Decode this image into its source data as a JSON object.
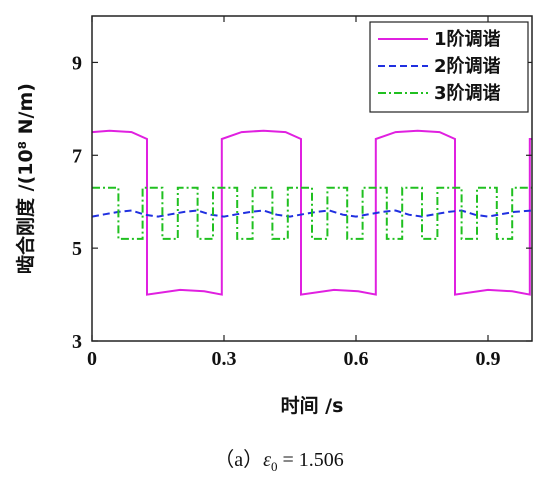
{
  "caption": {
    "label": "（a）",
    "symbol": "ε",
    "subscript": "0",
    "equals": " = ",
    "value": "1.506"
  },
  "chart_data": {
    "type": "line",
    "xlabel": "时间 /s",
    "ylabel": "啮合刚度 /(10⁸ N/m)",
    "xlim": [
      0,
      1.0
    ],
    "ylim": [
      3,
      10
    ],
    "xticks": [
      0,
      0.3,
      0.6,
      0.9
    ],
    "xtick_labels": [
      "0",
      "0.3",
      "0.6",
      "0.9"
    ],
    "yticks": [
      3,
      5,
      7,
      9
    ],
    "ytick_labels": [
      "3",
      "5",
      "7",
      "9"
    ],
    "grid": false,
    "legend_position": "top-right",
    "series": [
      {
        "name": "1阶调谐",
        "color": "#e020e0",
        "dash": "solid",
        "x": [
          0,
          0.04,
          0.09,
          0.125,
          0.125,
          0.2,
          0.255,
          0.295,
          0.295,
          0.34,
          0.39,
          0.44,
          0.475,
          0.475,
          0.55,
          0.605,
          0.645,
          0.645,
          0.69,
          0.74,
          0.79,
          0.825,
          0.825,
          0.9,
          0.955,
          0.995,
          0.995,
          1.0
        ],
        "y": [
          7.5,
          7.53,
          7.5,
          7.35,
          4.0,
          4.1,
          4.07,
          4.0,
          7.35,
          7.5,
          7.53,
          7.5,
          7.35,
          4.0,
          4.1,
          4.07,
          4.0,
          7.35,
          7.5,
          7.53,
          7.5,
          7.35,
          4.0,
          4.1,
          4.07,
          4.0,
          7.35,
          7.35
        ]
      },
      {
        "name": "2阶调谐",
        "color": "#2030e0",
        "dash": "dashed",
        "x": [
          0,
          0.03,
          0.06,
          0.09,
          0.12,
          0.15,
          0.18,
          0.21,
          0.24,
          0.27,
          0.3,
          0.33,
          0.36,
          0.39,
          0.42,
          0.45,
          0.48,
          0.51,
          0.54,
          0.57,
          0.6,
          0.63,
          0.66,
          0.69,
          0.72,
          0.75,
          0.78,
          0.81,
          0.84,
          0.87,
          0.9,
          0.93,
          0.96,
          1.0
        ],
        "y": [
          5.68,
          5.73,
          5.78,
          5.81,
          5.72,
          5.68,
          5.73,
          5.78,
          5.81,
          5.72,
          5.68,
          5.73,
          5.78,
          5.81,
          5.72,
          5.68,
          5.73,
          5.78,
          5.81,
          5.72,
          5.68,
          5.73,
          5.78,
          5.81,
          5.72,
          5.68,
          5.73,
          5.78,
          5.81,
          5.72,
          5.68,
          5.73,
          5.78,
          5.81
        ]
      },
      {
        "name": "3阶调谐",
        "color": "#20c020",
        "dash": "dashdot",
        "x": [
          0,
          0.06,
          0.06,
          0.115,
          0.115,
          0.16,
          0.16,
          0.195,
          0.195,
          0.24,
          0.24,
          0.275,
          0.275,
          0.33,
          0.33,
          0.365,
          0.365,
          0.41,
          0.41,
          0.445,
          0.445,
          0.5,
          0.5,
          0.535,
          0.535,
          0.58,
          0.58,
          0.615,
          0.615,
          0.67,
          0.67,
          0.705,
          0.705,
          0.75,
          0.75,
          0.785,
          0.785,
          0.84,
          0.84,
          0.875,
          0.875,
          0.92,
          0.92,
          0.955,
          0.955,
          1.0
        ],
        "y": [
          6.3,
          6.3,
          5.2,
          5.2,
          6.3,
          6.3,
          5.2,
          5.2,
          6.3,
          6.3,
          5.2,
          5.2,
          6.3,
          6.3,
          5.2,
          5.2,
          6.3,
          6.3,
          5.2,
          5.2,
          6.3,
          6.3,
          5.2,
          5.2,
          6.3,
          6.3,
          5.2,
          5.2,
          6.3,
          6.3,
          5.2,
          5.2,
          6.3,
          6.3,
          5.2,
          5.2,
          6.3,
          6.3,
          5.2,
          5.2,
          6.3,
          6.3,
          5.2,
          5.2,
          6.3,
          6.3
        ]
      }
    ]
  }
}
